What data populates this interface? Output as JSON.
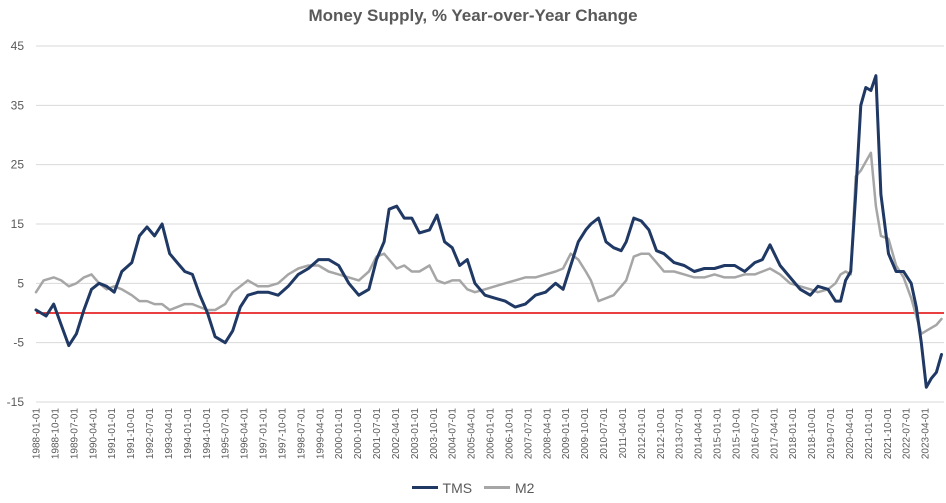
{
  "chart_data": {
    "type": "line",
    "title": "Money Supply, % Year-over-Year Change",
    "xlabel": "",
    "ylabel": "",
    "ylim": [
      -15,
      45
    ],
    "yticks": [
      45,
      35,
      25,
      15,
      5,
      -5,
      -15
    ],
    "grid": true,
    "legend": "bottom",
    "reference_line": {
      "y": 0,
      "color": "#e00000"
    },
    "x_tick_labels": [
      "1988-01-01",
      "1988-10-01",
      "1989-07-01",
      "1990-04-01",
      "1991-01-01",
      "1991-10-01",
      "1992-07-01",
      "1993-04-01",
      "1994-01-01",
      "1994-10-01",
      "1995-07-01",
      "1996-04-01",
      "1997-01-01",
      "1997-10-01",
      "1998-07-01",
      "1999-04-01",
      "2000-01-01",
      "2000-10-01",
      "2001-07-01",
      "2002-04-01",
      "2003-01-01",
      "2003-10-01",
      "2004-07-01",
      "2005-04-01",
      "2006-01-01",
      "2006-10-01",
      "2007-07-01",
      "2008-04-01",
      "2009-01-01",
      "2009-10-01",
      "2010-07-01",
      "2011-04-01",
      "2012-01-01",
      "2012-10-01",
      "2013-07-01",
      "2014-04-01",
      "2015-01-01",
      "2015-10-01",
      "2016-07-01",
      "2017-04-01",
      "2018-01-01",
      "2018-10-01",
      "2019-07-01",
      "2020-04-01",
      "2021-01-01",
      "2021-10-01",
      "2022-07-01",
      "2023-04-01"
    ],
    "series": [
      {
        "name": "TMS",
        "color": "#1f3864",
        "x": [
          1988.0,
          1988.4,
          1988.7,
          1989.0,
          1989.3,
          1989.6,
          1989.9,
          1990.2,
          1990.5,
          1990.8,
          1991.1,
          1991.4,
          1991.8,
          1992.1,
          1992.4,
          1992.7,
          1993.0,
          1993.3,
          1993.6,
          1993.9,
          1994.2,
          1994.5,
          1994.8,
          1995.1,
          1995.5,
          1995.8,
          1996.1,
          1996.4,
          1996.8,
          1997.2,
          1997.6,
          1998.0,
          1998.4,
          1998.8,
          1999.2,
          1999.6,
          2000.0,
          2000.4,
          2000.8,
          2001.2,
          2001.5,
          2001.8,
          2002.0,
          2002.3,
          2002.6,
          2002.9,
          2003.2,
          2003.6,
          2003.9,
          2004.2,
          2004.5,
          2004.8,
          2005.1,
          2005.4,
          2005.8,
          2006.2,
          2006.6,
          2007.0,
          2007.4,
          2007.8,
          2008.2,
          2008.6,
          2008.9,
          2009.2,
          2009.5,
          2009.8,
          2010.0,
          2010.3,
          2010.6,
          2010.9,
          2011.2,
          2011.4,
          2011.7,
          2012.0,
          2012.3,
          2012.6,
          2012.9,
          2013.3,
          2013.7,
          2014.1,
          2014.5,
          2014.9,
          2015.3,
          2015.7,
          2016.1,
          2016.5,
          2016.8,
          2017.1,
          2017.5,
          2017.9,
          2018.3,
          2018.7,
          2019.0,
          2019.4,
          2019.7,
          2019.9,
          2020.1,
          2020.3,
          2020.5,
          2020.7,
          2020.9,
          2021.1,
          2021.3,
          2021.5,
          2021.8,
          2022.1,
          2022.4,
          2022.7,
          2022.9,
          2023.1,
          2023.3,
          2023.5,
          2023.7,
          2023.9
        ],
        "values": [
          0.5,
          -0.5,
          1.5,
          -2.0,
          -5.5,
          -3.5,
          0.5,
          4.0,
          5.0,
          4.5,
          3.5,
          7.0,
          8.5,
          13.0,
          14.5,
          13.0,
          15.0,
          10.0,
          8.5,
          7.0,
          6.5,
          3.0,
          0.0,
          -4.0,
          -5.0,
          -3.0,
          1.0,
          3.0,
          3.5,
          3.5,
          3.0,
          4.5,
          6.5,
          7.5,
          9.0,
          9.0,
          8.0,
          5.0,
          3.0,
          4.0,
          9.0,
          12.0,
          17.5,
          18.0,
          16.0,
          16.0,
          13.5,
          14.0,
          16.5,
          12.0,
          11.0,
          8.0,
          9.0,
          5.0,
          3.0,
          2.5,
          2.0,
          1.0,
          1.5,
          3.0,
          3.5,
          5.0,
          4.0,
          8.0,
          12.0,
          14.0,
          15.0,
          16.0,
          12.0,
          11.0,
          10.5,
          12.0,
          16.0,
          15.5,
          14.0,
          10.5,
          10.0,
          8.5,
          8.0,
          7.0,
          7.5,
          7.5,
          8.0,
          8.0,
          7.0,
          8.5,
          9.0,
          11.5,
          8.0,
          6.0,
          4.0,
          3.0,
          4.5,
          4.0,
          2.0,
          2.0,
          5.5,
          7.0,
          20.0,
          35.0,
          38.0,
          37.5,
          40.0,
          20.0,
          10.0,
          7.0,
          7.0,
          5.0,
          1.0,
          -5.0,
          -12.5,
          -11.0,
          -10.0,
          -7.0
        ]
      },
      {
        "name": "M2",
        "color": "#a6a6a6",
        "x": [
          1988.0,
          1988.3,
          1988.7,
          1989.0,
          1989.3,
          1989.6,
          1989.9,
          1990.2,
          1990.5,
          1990.8,
          1991.1,
          1991.4,
          1991.8,
          1992.1,
          1992.4,
          1992.7,
          1993.0,
          1993.3,
          1993.6,
          1993.9,
          1994.2,
          1994.5,
          1994.8,
          1995.1,
          1995.5,
          1995.8,
          1996.1,
          1996.4,
          1996.8,
          1997.2,
          1997.6,
          1998.0,
          1998.4,
          1998.8,
          1999.2,
          1999.6,
          2000.0,
          2000.4,
          2000.8,
          2001.2,
          2001.5,
          2001.8,
          2002.0,
          2002.3,
          2002.6,
          2002.9,
          2003.2,
          2003.6,
          2003.9,
          2004.2,
          2004.5,
          2004.8,
          2005.1,
          2005.4,
          2005.8,
          2006.2,
          2006.6,
          2007.0,
          2007.4,
          2007.8,
          2008.2,
          2008.6,
          2008.9,
          2009.2,
          2009.5,
          2009.8,
          2010.0,
          2010.3,
          2010.6,
          2010.9,
          2011.2,
          2011.4,
          2011.7,
          2012.0,
          2012.3,
          2012.6,
          2012.9,
          2013.3,
          2013.7,
          2014.1,
          2014.5,
          2014.9,
          2015.3,
          2015.7,
          2016.1,
          2016.5,
          2016.8,
          2017.1,
          2017.5,
          2017.9,
          2018.3,
          2018.7,
          2019.0,
          2019.4,
          2019.7,
          2019.9,
          2020.1,
          2020.3,
          2020.5,
          2020.7,
          2020.9,
          2021.1,
          2021.3,
          2021.5,
          2021.8,
          2022.1,
          2022.4,
          2022.7,
          2022.9,
          2023.1,
          2023.3,
          2023.5,
          2023.7,
          2023.9
        ],
        "values": [
          3.5,
          5.5,
          6.0,
          5.5,
          4.5,
          5.0,
          6.0,
          6.5,
          5.0,
          4.0,
          4.5,
          4.0,
          3.0,
          2.0,
          2.0,
          1.5,
          1.5,
          0.5,
          1.0,
          1.5,
          1.5,
          1.0,
          0.5,
          0.5,
          1.5,
          3.5,
          4.5,
          5.5,
          4.5,
          4.5,
          5.0,
          6.5,
          7.5,
          8.0,
          8.0,
          7.0,
          6.5,
          6.0,
          5.5,
          7.0,
          9.5,
          10.0,
          9.0,
          7.5,
          8.0,
          7.0,
          7.0,
          8.0,
          5.5,
          5.0,
          5.5,
          5.5,
          4.0,
          3.5,
          4.0,
          4.5,
          5.0,
          5.5,
          6.0,
          6.0,
          6.5,
          7.0,
          7.5,
          10.0,
          9.0,
          7.0,
          5.5,
          2.0,
          2.5,
          3.0,
          4.5,
          5.5,
          9.5,
          10.0,
          10.0,
          8.5,
          7.0,
          7.0,
          6.5,
          6.0,
          6.0,
          6.5,
          6.0,
          6.0,
          6.5,
          6.5,
          7.0,
          7.5,
          6.5,
          5.0,
          4.5,
          4.0,
          3.5,
          4.0,
          5.0,
          6.5,
          7.0,
          6.5,
          23.0,
          24.0,
          25.5,
          27.0,
          18.0,
          13.0,
          12.5,
          8.0,
          6.0,
          2.5,
          -0.5,
          -3.5,
          -3.0,
          -2.5,
          -2.0,
          -1.0
        ]
      }
    ]
  }
}
